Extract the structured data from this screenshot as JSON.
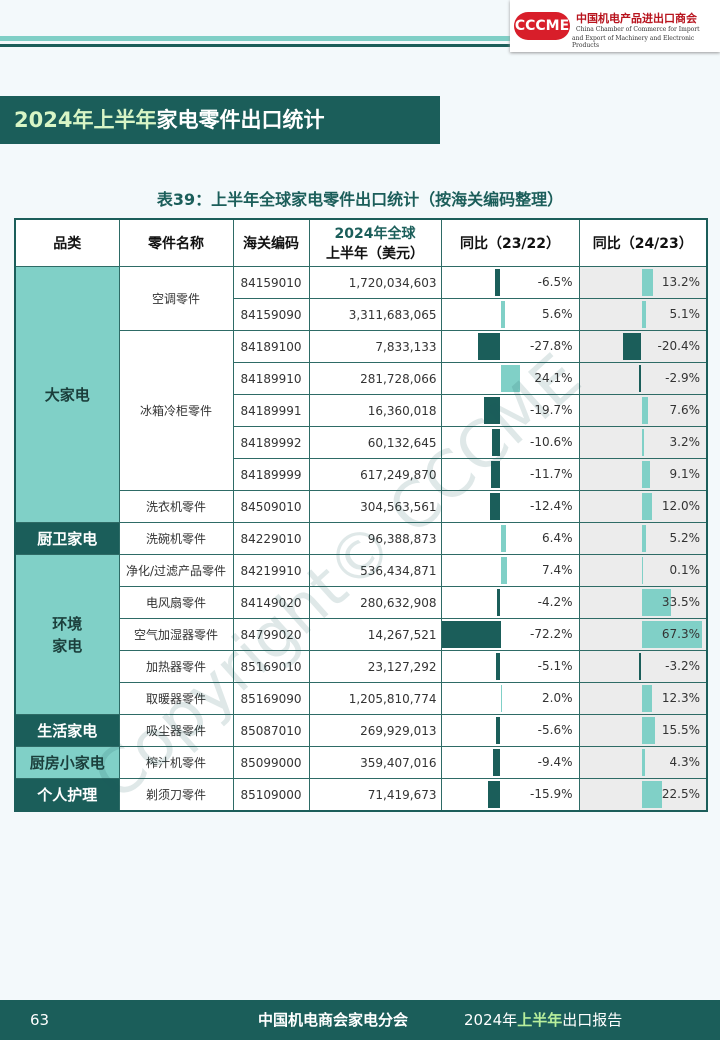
{
  "header": {
    "org_cn": "中国机电产品进出口商会",
    "org_en_1": "China Chamber of Commerce for Import",
    "org_en_2": "and Export of Machinery and Electronic Products",
    "logo": "CCCME"
  },
  "banner": {
    "title_part1": "2024年上半年",
    "title_part2": "家电零件出口统计"
  },
  "table": {
    "caption": "表39：上半年全球家电零件出口统计（按海关编码整理）",
    "columns": {
      "category": "品类",
      "part": "零件名称",
      "code": "海关编码",
      "value_1": "2024年全球",
      "value_2": "上半年（美元）",
      "yoy1": "同比（23/22）",
      "yoy2": "同比（24/23）"
    },
    "groups": [
      {
        "category": "大家电",
        "parts": [
          {
            "name": "空调零件",
            "rows": [
              {
                "code": "84159010",
                "value": "1,720,034,603",
                "yoy1": {
                  "value": -6.5,
                  "label": "-6.5%"
                },
                "yoy2": {
                  "value": 13.2,
                  "label": "13.2%"
                }
              },
              {
                "code": "84159090",
                "value": "3,311,683,065",
                "yoy1": {
                  "value": 5.6,
                  "label": "5.6%"
                },
                "yoy2": {
                  "value": 5.1,
                  "label": "5.1%"
                }
              }
            ]
          },
          {
            "name": "冰箱冷柜零件",
            "rows": [
              {
                "code": "84189100",
                "value": "7,833,133",
                "yoy1": {
                  "value": -27.8,
                  "label": "-27.8%"
                },
                "yoy2": {
                  "value": -20.4,
                  "label": "-20.4%"
                }
              },
              {
                "code": "84189910",
                "value": "281,728,066",
                "yoy1": {
                  "value": 24.1,
                  "label": "24.1%"
                },
                "yoy2": {
                  "value": -2.9,
                  "label": "-2.9%"
                }
              },
              {
                "code": "84189991",
                "value": "16,360,018",
                "yoy1": {
                  "value": -19.7,
                  "label": "-19.7%"
                },
                "yoy2": {
                  "value": 7.6,
                  "label": "7.6%"
                }
              },
              {
                "code": "84189992",
                "value": "60,132,645",
                "yoy1": {
                  "value": -10.6,
                  "label": "-10.6%"
                },
                "yoy2": {
                  "value": 3.2,
                  "label": "3.2%"
                }
              },
              {
                "code": "84189999",
                "value": "617,249,870",
                "yoy1": {
                  "value": -11.7,
                  "label": "-11.7%"
                },
                "yoy2": {
                  "value": 9.1,
                  "label": "9.1%"
                }
              }
            ]
          },
          {
            "name": "洗衣机零件",
            "rows": [
              {
                "code": "84509010",
                "value": "304,563,561",
                "yoy1": {
                  "value": -12.4,
                  "label": "-12.4%"
                },
                "yoy2": {
                  "value": 12.0,
                  "label": "12.0%"
                }
              }
            ]
          }
        ]
      },
      {
        "category": "厨卫家电",
        "dark": true,
        "parts": [
          {
            "name": "洗碗机零件",
            "rows": [
              {
                "code": "84229010",
                "value": "96,388,873",
                "yoy1": {
                  "value": 6.4,
                  "label": "6.4%"
                },
                "yoy2": {
                  "value": 5.2,
                  "label": "5.2%"
                }
              }
            ]
          }
        ]
      },
      {
        "category": "环境\n家电",
        "parts": [
          {
            "name": "净化/过滤产品零件",
            "rows": [
              {
                "code": "84219910",
                "value": "536,434,871",
                "yoy1": {
                  "value": 7.4,
                  "label": "7.4%"
                },
                "yoy2": {
                  "value": 0.1,
                  "label": "0.1%"
                }
              }
            ]
          },
          {
            "name": "电风扇零件",
            "rows": [
              {
                "code": "84149020",
                "value": "280,632,908",
                "yoy1": {
                  "value": -4.2,
                  "label": "-4.2%"
                },
                "yoy2": {
                  "value": 33.5,
                  "label": "33.5%"
                }
              }
            ]
          },
          {
            "name": "空气加湿器零件",
            "rows": [
              {
                "code": "84799020",
                "value": "14,267,521",
                "yoy1": {
                  "value": -72.2,
                  "label": "-72.2%"
                },
                "yoy2": {
                  "value": 67.3,
                  "label": "67.3%"
                }
              }
            ]
          },
          {
            "name": "加热器零件",
            "rows": [
              {
                "code": "85169010",
                "value": "23,127,292",
                "yoy1": {
                  "value": -5.1,
                  "label": "-5.1%"
                },
                "yoy2": {
                  "value": -3.2,
                  "label": "-3.2%"
                }
              }
            ]
          },
          {
            "name": "取暖器零件",
            "rows": [
              {
                "code": "85169090",
                "value": "1,205,810,774",
                "yoy1": {
                  "value": 2.0,
                  "label": "2.0%"
                },
                "yoy2": {
                  "value": 12.3,
                  "label": "12.3%"
                }
              }
            ]
          }
        ]
      },
      {
        "category": "生活家电",
        "dark": true,
        "parts": [
          {
            "name": "吸尘器零件",
            "rows": [
              {
                "code": "85087010",
                "value": "269,929,013",
                "yoy1": {
                  "value": -5.6,
                  "label": "-5.6%"
                },
                "yoy2": {
                  "value": 15.5,
                  "label": "15.5%"
                }
              }
            ]
          }
        ]
      },
      {
        "category": "厨房小家电",
        "parts": [
          {
            "name": "榨汁机零件",
            "rows": [
              {
                "code": "85099000",
                "value": "359,407,016",
                "yoy1": {
                  "value": -9.4,
                  "label": "-9.4%"
                },
                "yoy2": {
                  "value": 4.3,
                  "label": "4.3%"
                }
              }
            ]
          }
        ]
      },
      {
        "category": "个人护理",
        "dark": true,
        "parts": [
          {
            "name": "剃须刀零件",
            "rows": [
              {
                "code": "85109000",
                "value": "71,419,673",
                "yoy1": {
                  "value": -15.9,
                  "label": "-15.9%"
                },
                "yoy2": {
                  "value": 22.5,
                  "label": "22.5%"
                }
              }
            ]
          }
        ]
      }
    ]
  },
  "watermark": "Copyright© CCCME",
  "footer": {
    "page": "63",
    "org": "中国机电商会家电分会",
    "report_1": "2024年",
    "report_2": "上半年",
    "report_3": "出口报告"
  }
}
